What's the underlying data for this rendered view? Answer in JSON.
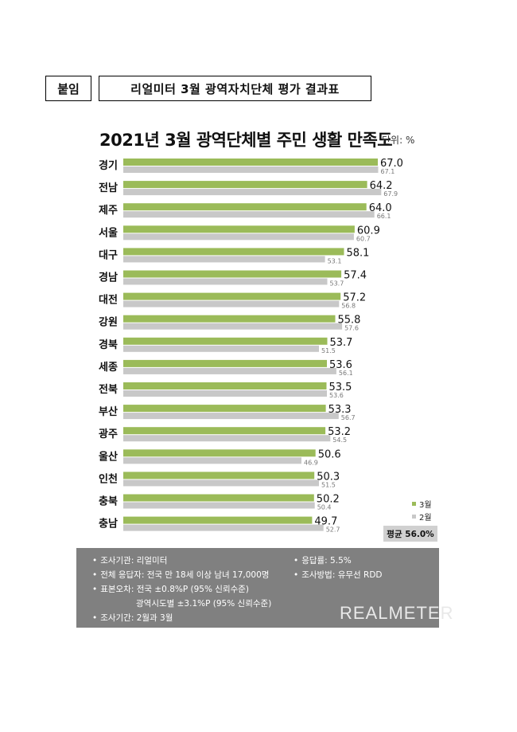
{
  "header": {
    "tag": "붙임",
    "title": "리얼미터 3월 광역자치단체 평가 결과표"
  },
  "chart_data": {
    "type": "bar",
    "orientation": "horizontal",
    "title": "2021년 3월 광역단체별 주민 생활 만족도",
    "unit": "단위: %",
    "categories": [
      "경기",
      "전남",
      "제주",
      "서울",
      "대구",
      "경남",
      "대전",
      "강원",
      "경북",
      "세종",
      "전북",
      "부산",
      "광주",
      "울산",
      "인천",
      "충북",
      "충남"
    ],
    "series": [
      {
        "name": "3월",
        "color": "#9bbb59",
        "values": [
          67.0,
          64.2,
          64.0,
          60.9,
          58.1,
          57.4,
          57.2,
          55.8,
          53.7,
          53.6,
          53.5,
          53.3,
          53.2,
          50.6,
          50.3,
          50.2,
          49.7
        ],
        "labels": [
          "67.0",
          "64.2",
          "64.0",
          "60.9",
          "58.1",
          "57.4",
          "57.2",
          "55.8",
          "53.7",
          "53.6",
          "53.5",
          "53.3",
          "53.2",
          "50.6",
          "50.3",
          "50.2",
          "49.7"
        ]
      },
      {
        "name": "2월",
        "color": "#c8c8c8",
        "values": [
          67.1,
          67.9,
          66.1,
          60.7,
          53.1,
          53.7,
          56.8,
          57.6,
          51.5,
          56.1,
          53.6,
          56.7,
          54.5,
          46.9,
          51.5,
          50.4,
          52.7
        ],
        "labels": [
          "67.1",
          "67.9",
          "66.1",
          "60.7",
          "53.1",
          "53.7",
          "56.8",
          "57.6",
          "51.5",
          "56.1",
          "53.6",
          "56.7",
          "54.5",
          "46.9",
          "51.5",
          "50.4",
          "52.7"
        ]
      }
    ],
    "xlim": [
      0,
      70
    ],
    "legend_position": "bottom-right",
    "grid": false,
    "average_label": "평균 56.0%"
  },
  "info": {
    "agency": "조사기관: 리얼미터",
    "respondents": "전체 응답자: 전국 만 18세 이상 남녀 17,000명",
    "error_national": "표본오차: 전국 ±0.8%P (95% 신뢰수준)",
    "error_regional": "광역시도별 ±3.1%P (95% 신뢰수준)",
    "period": "조사기간: 2월과 3월",
    "response_rate": "응답률: 5.5%",
    "method": "조사방법: 유무선 RDD",
    "bullet": "•",
    "logo": "REALMETER"
  }
}
